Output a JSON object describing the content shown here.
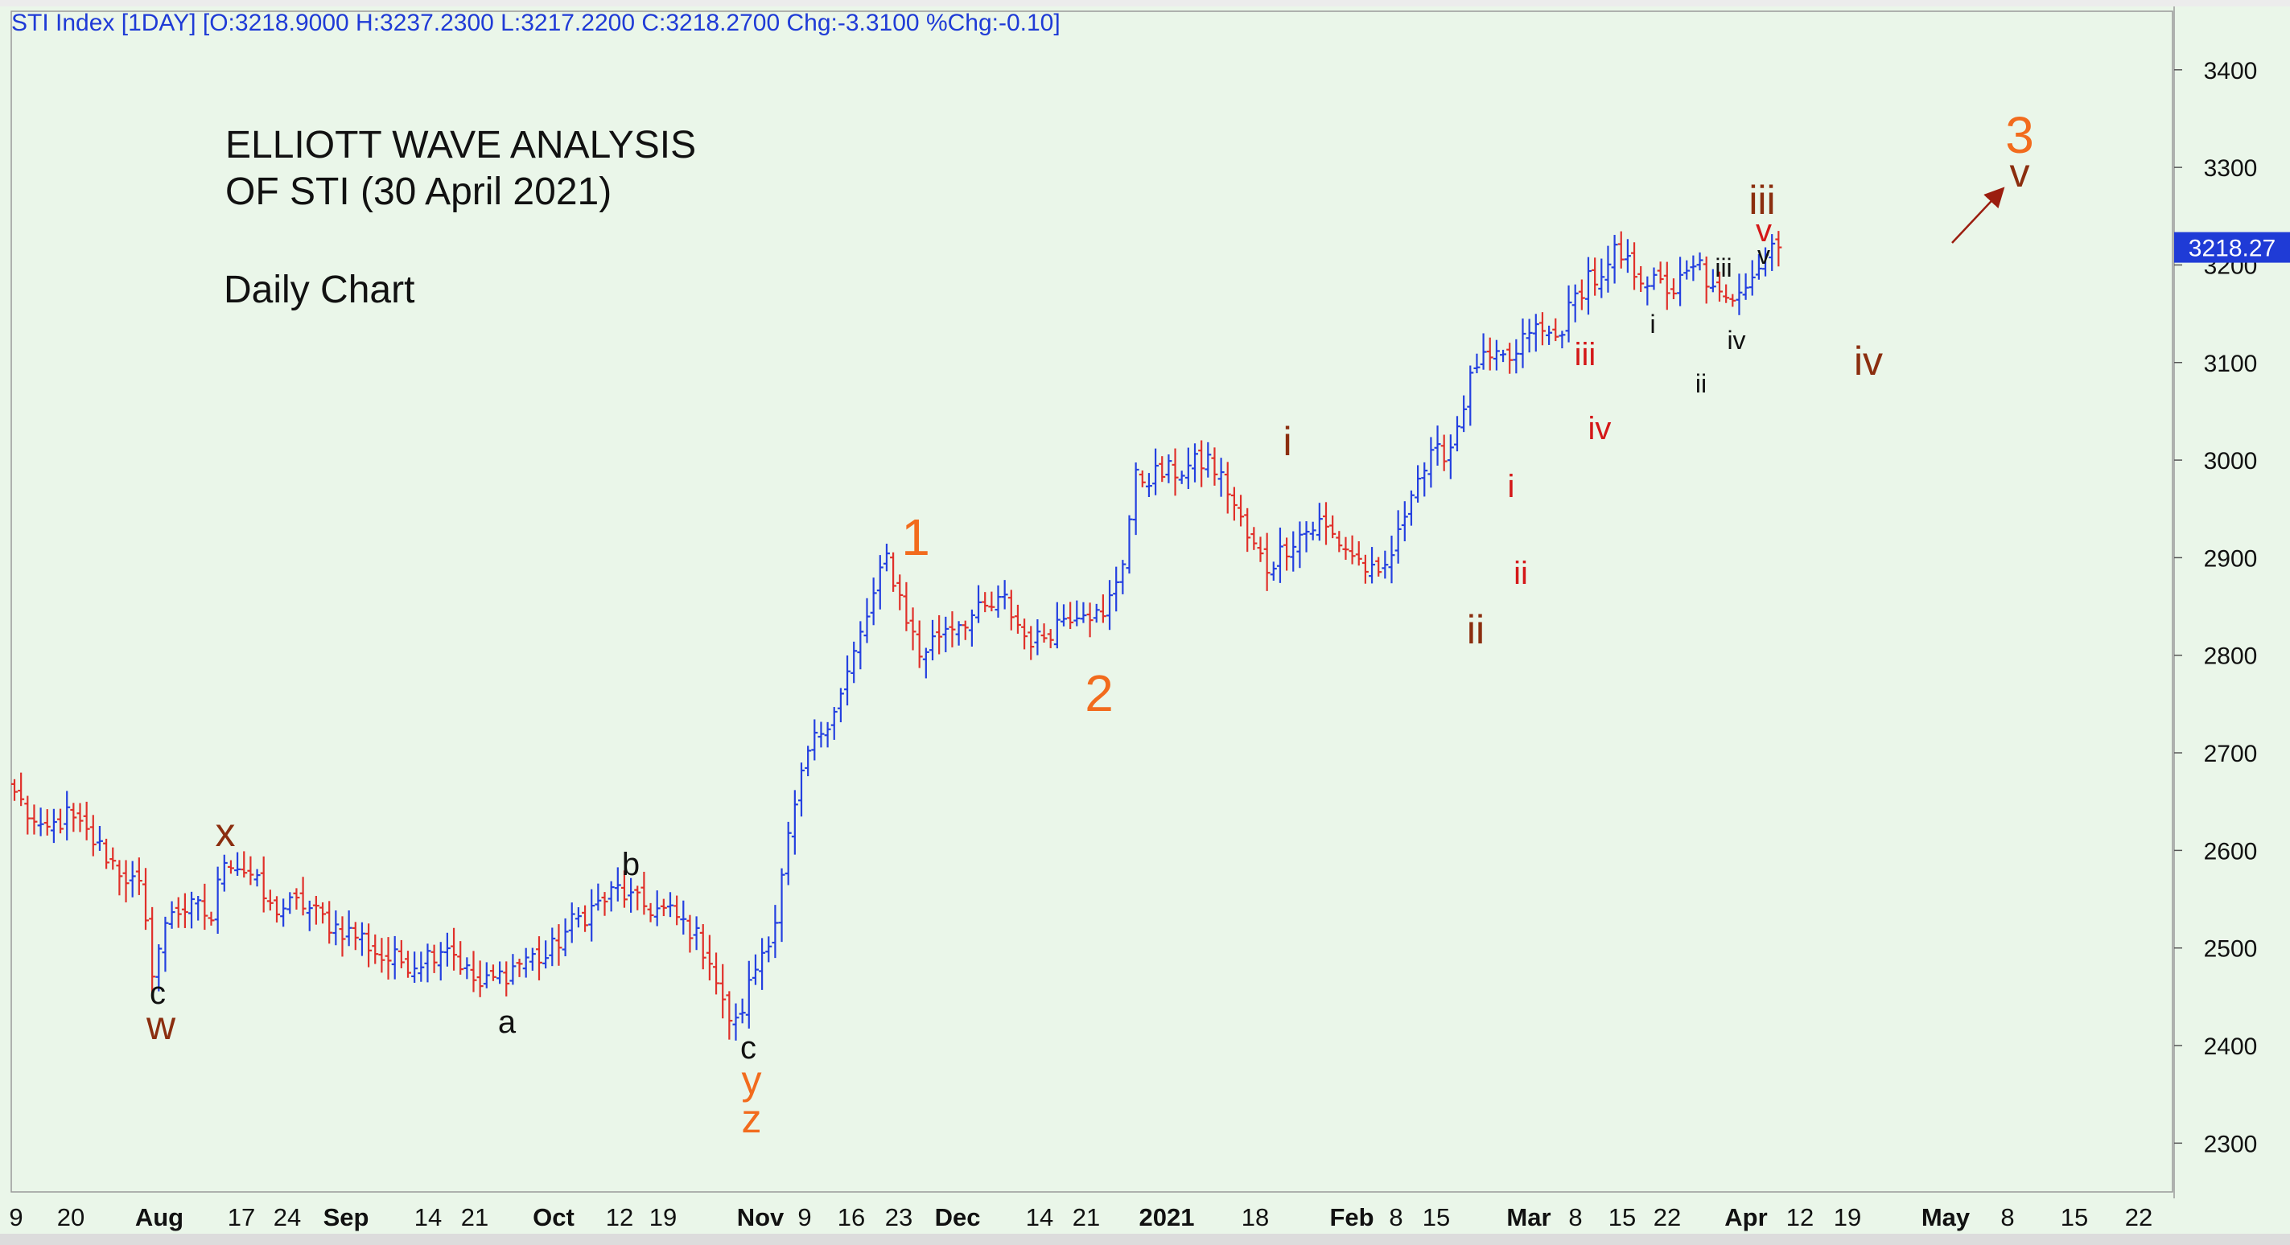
{
  "header": {
    "text": "STI Index [1DAY] [O:3218.9000 H:3237.2300 L:3217.2200 C:3218.2700 Chg:-3.3100 %Chg:-0.10]"
  },
  "annotation_text": {
    "title_line1": "ELLIOTT WAVE ANALYSIS",
    "title_line2": "OF STI (30 April 2021)",
    "subtitle": "Daily Chart"
  },
  "last_price_label": "3218.27",
  "colors": {
    "background": "#eaf6e9",
    "up_bar": "#2440e0",
    "down_bar": "#e0302a",
    "header_text": "#1f3bd6",
    "price_badge": "#1f3bd6",
    "wave_orange": "#f26b1d",
    "wave_brown": "#8b2e0f",
    "wave_red": "#d41818",
    "wave_black": "#111111"
  },
  "chart_data": {
    "type": "ohlc",
    "title": "",
    "xlabel": "",
    "ylabel": "",
    "ylim": [
      2250,
      3460
    ],
    "y_ticks": [
      2300,
      2400,
      2500,
      2600,
      2700,
      2800,
      2900,
      3000,
      3100,
      3200,
      3300,
      3400
    ],
    "x_tick_labels": [
      {
        "label": "9",
        "bold": false
      },
      {
        "label": "20",
        "bold": false
      },
      {
        "label": "Aug",
        "bold": true
      },
      {
        "label": "17",
        "bold": false
      },
      {
        "label": "24",
        "bold": false
      },
      {
        "label": "Sep",
        "bold": true
      },
      {
        "label": "14",
        "bold": false
      },
      {
        "label": "21",
        "bold": false
      },
      {
        "label": "Oct",
        "bold": true
      },
      {
        "label": "12",
        "bold": false
      },
      {
        "label": "19",
        "bold": false
      },
      {
        "label": "Nov",
        "bold": true
      },
      {
        "label": "9",
        "bold": false
      },
      {
        "label": "16",
        "bold": false
      },
      {
        "label": "23",
        "bold": false
      },
      {
        "label": "Dec",
        "bold": true
      },
      {
        "label": "14",
        "bold": false
      },
      {
        "label": "21",
        "bold": false
      },
      {
        "label": "2021",
        "bold": true
      },
      {
        "label": "18",
        "bold": false
      },
      {
        "label": "Feb",
        "bold": true
      },
      {
        "label": "8",
        "bold": false
      },
      {
        "label": "15",
        "bold": false
      },
      {
        "label": "Mar",
        "bold": true
      },
      {
        "label": "8",
        "bold": false
      },
      {
        "label": "15",
        "bold": false
      },
      {
        "label": "22",
        "bold": false
      },
      {
        "label": "Apr",
        "bold": true
      },
      {
        "label": "12",
        "bold": false
      },
      {
        "label": "19",
        "bold": false
      },
      {
        "label": "May",
        "bold": true
      },
      {
        "label": "8",
        "bold": false
      },
      {
        "label": "15",
        "bold": false
      },
      {
        "label": "22",
        "bold": false
      }
    ],
    "close_path": [
      [
        0,
        2660
      ],
      [
        4,
        2615
      ],
      [
        8,
        2635
      ],
      [
        12,
        2610
      ],
      [
        16,
        2580
      ],
      [
        19,
        2560
      ],
      [
        21,
        2480
      ],
      [
        24,
        2540
      ],
      [
        28,
        2540
      ],
      [
        30,
        2530
      ],
      [
        32,
        2595
      ],
      [
        36,
        2575
      ],
      [
        39,
        2540
      ],
      [
        44,
        2545
      ],
      [
        48,
        2525
      ],
      [
        53,
        2510
      ],
      [
        56,
        2490
      ],
      [
        61,
        2485
      ],
      [
        66,
        2505
      ],
      [
        69,
        2475
      ],
      [
        71,
        2460
      ],
      [
        75,
        2475
      ],
      [
        78,
        2490
      ],
      [
        81,
        2490
      ],
      [
        85,
        2525
      ],
      [
        89,
        2545
      ],
      [
        92,
        2560
      ],
      [
        95,
        2545
      ],
      [
        100,
        2535
      ],
      [
        103,
        2520
      ],
      [
        106,
        2490
      ],
      [
        108,
        2440
      ],
      [
        110,
        2420
      ],
      [
        113,
        2480
      ],
      [
        116,
        2530
      ],
      [
        118,
        2610
      ],
      [
        121,
        2700
      ],
      [
        126,
        2760
      ],
      [
        130,
        2840
      ],
      [
        133,
        2900
      ],
      [
        135,
        2860
      ],
      [
        138,
        2800
      ],
      [
        142,
        2830
      ],
      [
        146,
        2840
      ],
      [
        151,
        2855
      ],
      [
        154,
        2820
      ],
      [
        156,
        2815
      ],
      [
        160,
        2840
      ],
      [
        163,
        2850
      ],
      [
        166,
        2835
      ],
      [
        169,
        2900
      ],
      [
        171,
        2980
      ],
      [
        174,
        2985
      ],
      [
        178,
        2990
      ],
      [
        182,
        3000
      ],
      [
        185,
        2970
      ],
      [
        188,
        2920
      ],
      [
        191,
        2890
      ],
      [
        195,
        2920
      ],
      [
        199,
        2935
      ],
      [
        203,
        2910
      ],
      [
        206,
        2890
      ],
      [
        208,
        2875
      ],
      [
        211,
        2920
      ],
      [
        213,
        2975
      ],
      [
        216,
        3000
      ],
      [
        219,
        3015
      ],
      [
        221,
        3060
      ],
      [
        223,
        3100
      ],
      [
        226,
        3100
      ],
      [
        229,
        3105
      ],
      [
        231,
        3135
      ],
      [
        235,
        3125
      ],
      [
        238,
        3165
      ],
      [
        240,
        3190
      ],
      [
        242,
        3180
      ],
      [
        244,
        3210
      ],
      [
        246,
        3200
      ],
      [
        250,
        3180
      ],
      [
        253,
        3175
      ],
      [
        257,
        3200
      ],
      [
        259,
        3170
      ],
      [
        261,
        3160
      ],
      [
        263,
        3180
      ],
      [
        266,
        3200
      ],
      [
        268,
        3222
      ],
      [
        269,
        3218
      ]
    ]
  },
  "wave_labels": [
    {
      "text": "c",
      "color": "black",
      "size": "med"
    },
    {
      "text": "w",
      "color": "brown",
      "size": "big"
    },
    {
      "text": "x",
      "color": "brown",
      "size": "big"
    },
    {
      "text": "a",
      "color": "black",
      "size": "med"
    },
    {
      "text": "b",
      "color": "black",
      "size": "med"
    },
    {
      "text": "c",
      "color": "black",
      "size": "med"
    },
    {
      "text": "y",
      "color": "orange",
      "size": "big"
    },
    {
      "text": "z",
      "color": "orange",
      "size": "big"
    },
    {
      "text": "1",
      "color": "orange",
      "size": "huge"
    },
    {
      "text": "2",
      "color": "orange",
      "size": "huge"
    },
    {
      "text": "i",
      "color": "brown",
      "size": "big"
    },
    {
      "text": "ii",
      "color": "brown",
      "size": "big"
    },
    {
      "text": "i",
      "color": "red",
      "size": "med"
    },
    {
      "text": "ii",
      "color": "red",
      "size": "med"
    },
    {
      "text": "iii",
      "color": "red",
      "size": "med"
    },
    {
      "text": "iv",
      "color": "red",
      "size": "med"
    },
    {
      "text": "i",
      "color": "black",
      "size": "small"
    },
    {
      "text": "ii",
      "color": "black",
      "size": "small"
    },
    {
      "text": "iii",
      "color": "black",
      "size": "small"
    },
    {
      "text": "iv",
      "color": "black",
      "size": "small"
    },
    {
      "text": "v",
      "color": "black",
      "size": "small"
    },
    {
      "text": "v",
      "color": "red",
      "size": "med"
    },
    {
      "text": "iii",
      "color": "brown",
      "size": "big"
    },
    {
      "text": "iv",
      "color": "brown",
      "size": "big"
    },
    {
      "text": "3",
      "color": "orange",
      "size": "huge"
    },
    {
      "text": "v",
      "color": "brown",
      "size": "big"
    }
  ]
}
